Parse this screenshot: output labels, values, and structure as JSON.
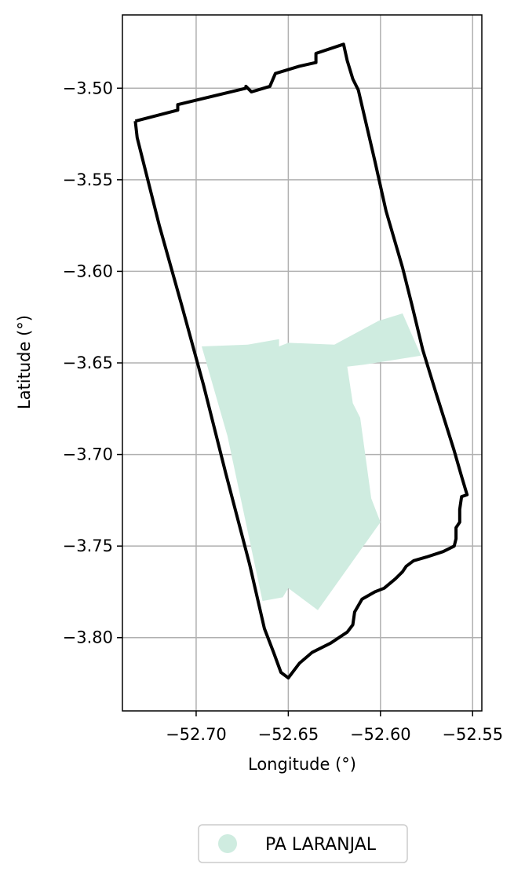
{
  "chart_data": {
    "type": "map",
    "xlabel": "Longitude (°)",
    "ylabel": "Latitude (°)",
    "xlim": [
      -52.74,
      -52.545
    ],
    "ylim": [
      -3.84,
      -3.46
    ],
    "grid": true,
    "x_ticks": [
      -52.7,
      -52.65,
      -52.6,
      -52.55
    ],
    "x_tick_labels": [
      "−52.70",
      "−52.65",
      "−52.60",
      "−52.55"
    ],
    "y_ticks": [
      -3.5,
      -3.55,
      -3.6,
      -3.65,
      -3.7,
      -3.75,
      -3.8
    ],
    "y_tick_labels": [
      "−3.50",
      "−3.55",
      "−3.60",
      "−3.65",
      "−3.70",
      "−3.75",
      "−3.80"
    ],
    "legend": {
      "placement": "bottom-center",
      "entries": [
        {
          "label": "PA LARANJAL",
          "color": "#cfece0"
        }
      ]
    },
    "boundary": {
      "color": "#000000",
      "coords": [
        [
          -52.733,
          -3.518
        ],
        [
          -52.71,
          -3.512
        ],
        [
          -52.71,
          -3.509
        ],
        [
          -52.673,
          -3.5
        ],
        [
          -52.673,
          -3.499
        ],
        [
          -52.67,
          -3.502
        ],
        [
          -52.66,
          -3.499
        ],
        [
          -52.657,
          -3.492
        ],
        [
          -52.644,
          -3.488
        ],
        [
          -52.635,
          -3.486
        ],
        [
          -52.635,
          -3.481
        ],
        [
          -52.62,
          -3.476
        ],
        [
          -52.618,
          -3.485
        ],
        [
          -52.615,
          -3.495
        ],
        [
          -52.612,
          -3.501
        ],
        [
          -52.603,
          -3.54
        ],
        [
          -52.597,
          -3.567
        ],
        [
          -52.588,
          -3.598
        ],
        [
          -52.583,
          -3.618
        ],
        [
          -52.577,
          -3.643
        ],
        [
          -52.57,
          -3.666
        ],
        [
          -52.56,
          -3.698
        ],
        [
          -52.556,
          -3.712
        ],
        [
          -52.553,
          -3.722
        ],
        [
          -52.556,
          -3.723
        ],
        [
          -52.557,
          -3.73
        ],
        [
          -52.557,
          -3.737
        ],
        [
          -52.559,
          -3.74
        ],
        [
          -52.559,
          -3.746
        ],
        [
          -52.56,
          -3.75
        ],
        [
          -52.566,
          -3.753
        ],
        [
          -52.575,
          -3.756
        ],
        [
          -52.582,
          -3.758
        ],
        [
          -52.586,
          -3.761
        ],
        [
          -52.588,
          -3.764
        ],
        [
          -52.592,
          -3.768
        ],
        [
          -52.598,
          -3.773
        ],
        [
          -52.603,
          -3.775
        ],
        [
          -52.61,
          -3.779
        ],
        [
          -52.614,
          -3.786
        ],
        [
          -52.615,
          -3.793
        ],
        [
          -52.618,
          -3.797
        ],
        [
          -52.627,
          -3.803
        ],
        [
          -52.637,
          -3.808
        ],
        [
          -52.644,
          -3.814
        ],
        [
          -52.65,
          -3.822
        ],
        [
          -52.654,
          -3.819
        ],
        [
          -52.658,
          -3.808
        ],
        [
          -52.663,
          -3.795
        ],
        [
          -52.671,
          -3.76
        ],
        [
          -52.684,
          -3.71
        ],
        [
          -52.696,
          -3.662
        ],
        [
          -52.708,
          -3.618
        ],
        [
          -52.72,
          -3.575
        ],
        [
          -52.732,
          -3.527
        ],
        [
          -52.733,
          -3.518
        ]
      ]
    },
    "region": {
      "name": "PA LARANJAL",
      "color": "#cfece0",
      "coords": [
        [
          -52.697,
          -3.641
        ],
        [
          -52.672,
          -3.64
        ],
        [
          -52.655,
          -3.637
        ],
        [
          -52.655,
          -3.641
        ],
        [
          -52.65,
          -3.639
        ],
        [
          -52.625,
          -3.64
        ],
        [
          -52.601,
          -3.627
        ],
        [
          -52.588,
          -3.623
        ],
        [
          -52.578,
          -3.646
        ],
        [
          -52.609,
          -3.651
        ],
        [
          -52.618,
          -3.652
        ],
        [
          -52.615,
          -3.672
        ],
        [
          -52.611,
          -3.68
        ],
        [
          -52.605,
          -3.724
        ],
        [
          -52.6,
          -3.737
        ],
        [
          -52.634,
          -3.785
        ],
        [
          -52.65,
          -3.773
        ],
        [
          -52.653,
          -3.778
        ],
        [
          -52.664,
          -3.78
        ],
        [
          -52.683,
          -3.69
        ],
        [
          -52.697,
          -3.641
        ]
      ]
    }
  }
}
